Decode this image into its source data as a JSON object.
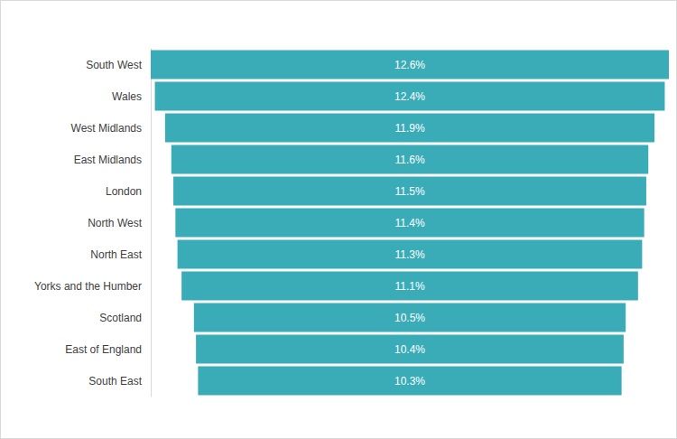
{
  "chart_data": {
    "type": "bar",
    "orientation": "horizontal",
    "categories": [
      "South West",
      "Wales",
      "West Midlands",
      "East Midlands",
      "London",
      "North West",
      "North East",
      "Yorks and the Humber",
      "Scotland",
      "East of England",
      "South East"
    ],
    "values": [
      12.6,
      12.4,
      11.9,
      11.6,
      11.5,
      11.4,
      11.3,
      11.1,
      10.5,
      10.4,
      10.3
    ],
    "value_labels": [
      "12.6%",
      "12.4%",
      "11.9%",
      "11.6%",
      "11.5%",
      "11.4%",
      "11.3%",
      "11.1%",
      "10.5%",
      "10.4%",
      "10.3%"
    ],
    "color": "#3aacb8",
    "xlim": [
      0,
      12.6
    ],
    "data_labels": true,
    "tick_labels": "y",
    "grid": false
  }
}
